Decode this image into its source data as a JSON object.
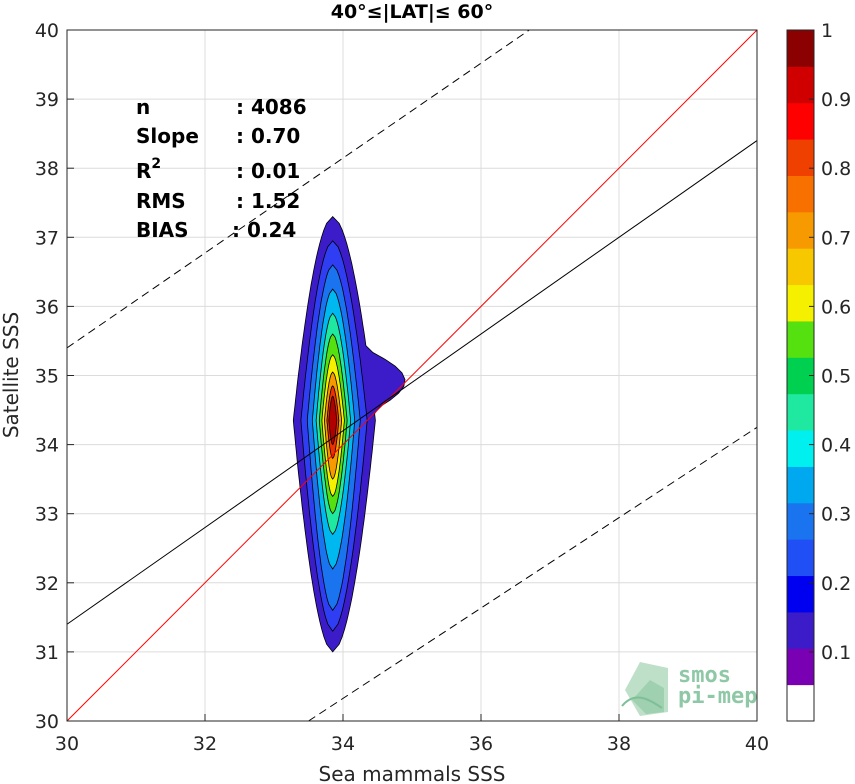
{
  "chart_data": {
    "type": "heatmap",
    "title": "40°≤|LAT|≤ 60°",
    "xlabel": "Sea mammals SSS",
    "ylabel": "Satellite SSS",
    "xlim": [
      30,
      40
    ],
    "ylim": [
      30,
      40
    ],
    "xticks": [
      "30",
      "32",
      "34",
      "36",
      "38",
      "40"
    ],
    "yticks": [
      "30",
      "31",
      "32",
      "33",
      "34",
      "35",
      "36",
      "37",
      "38",
      "39",
      "40"
    ],
    "grid": true,
    "stats": [
      {
        "label": "n",
        "value": ": 4086"
      },
      {
        "label": "Slope",
        "value": ": 0.70"
      },
      {
        "label": "R",
        "sup": "2",
        "value": ": 0.01"
      },
      {
        "label": "RMS",
        "value": ": 1.52"
      },
      {
        "label": "BIAS",
        "value": ": 0.24"
      }
    ],
    "lines": [
      {
        "kind": "identity",
        "color": "#ff0000",
        "dash": false,
        "points": [
          [
            30,
            30
          ],
          [
            40,
            40
          ]
        ]
      },
      {
        "kind": "regression",
        "color": "#000000",
        "dash": false,
        "points": [
          [
            30,
            31.4
          ],
          [
            40,
            38.4
          ]
        ]
      },
      {
        "kind": "upper-bound",
        "color": "#000000",
        "dash": true,
        "points": [
          [
            30,
            35.4
          ],
          [
            36.7,
            40
          ]
        ]
      },
      {
        "kind": "lower-bound",
        "color": "#000000",
        "dash": true,
        "points": [
          [
            33.5,
            30
          ],
          [
            40,
            34.25
          ]
        ]
      }
    ],
    "density_center": {
      "x": 33.85,
      "y": 34.35
    },
    "density_levels": [
      {
        "level": 0.05,
        "color": "#3b1cc8",
        "half_width": 0.62,
        "y_low": 31.0,
        "y_high": 37.3
      },
      {
        "level": 0.15,
        "color": "#2f3ef2",
        "half_width": 0.5,
        "y_low": 31.3,
        "y_high": 36.95
      },
      {
        "level": 0.25,
        "color": "#1a74f0",
        "half_width": 0.4,
        "y_low": 31.6,
        "y_high": 36.6
      },
      {
        "level": 0.35,
        "color": "#00b8f0",
        "half_width": 0.32,
        "y_low": 32.2,
        "y_high": 36.25
      },
      {
        "level": 0.45,
        "color": "#1fe8a0",
        "half_width": 0.26,
        "y_low": 32.7,
        "y_high": 35.9
      },
      {
        "level": 0.55,
        "color": "#55e010",
        "half_width": 0.21,
        "y_low": 33.0,
        "y_high": 35.6
      },
      {
        "level": 0.65,
        "color": "#f4f000",
        "half_width": 0.17,
        "y_low": 33.25,
        "y_high": 35.3
      },
      {
        "level": 0.75,
        "color": "#f79a00",
        "half_width": 0.13,
        "y_low": 33.5,
        "y_high": 35.05
      },
      {
        "level": 0.85,
        "color": "#f03000",
        "half_width": 0.09,
        "y_low": 33.8,
        "y_high": 34.85
      },
      {
        "level": 0.95,
        "color": "#b00000",
        "half_width": 0.06,
        "y_low": 34.0,
        "y_high": 34.7
      }
    ],
    "colorbar": {
      "range": [
        0,
        1
      ],
      "ticks": [
        "0.1",
        "0.2",
        "0.3",
        "0.4",
        "0.5",
        "0.6",
        "0.7",
        "0.8",
        "0.9",
        "1"
      ],
      "colors": [
        "#ffffff",
        "#7a00b4",
        "#3b1cc8",
        "#0000f0",
        "#1f4ff5",
        "#1a74f0",
        "#00a8f0",
        "#00f0f0",
        "#1fe8a0",
        "#00d050",
        "#55e010",
        "#f4f000",
        "#f7c800",
        "#f79a00",
        "#f77000",
        "#f04000",
        "#ff0000",
        "#d00000",
        "#8b0000"
      ]
    }
  },
  "watermark": {
    "line1": "smos",
    "line2": "pi-mep"
  }
}
